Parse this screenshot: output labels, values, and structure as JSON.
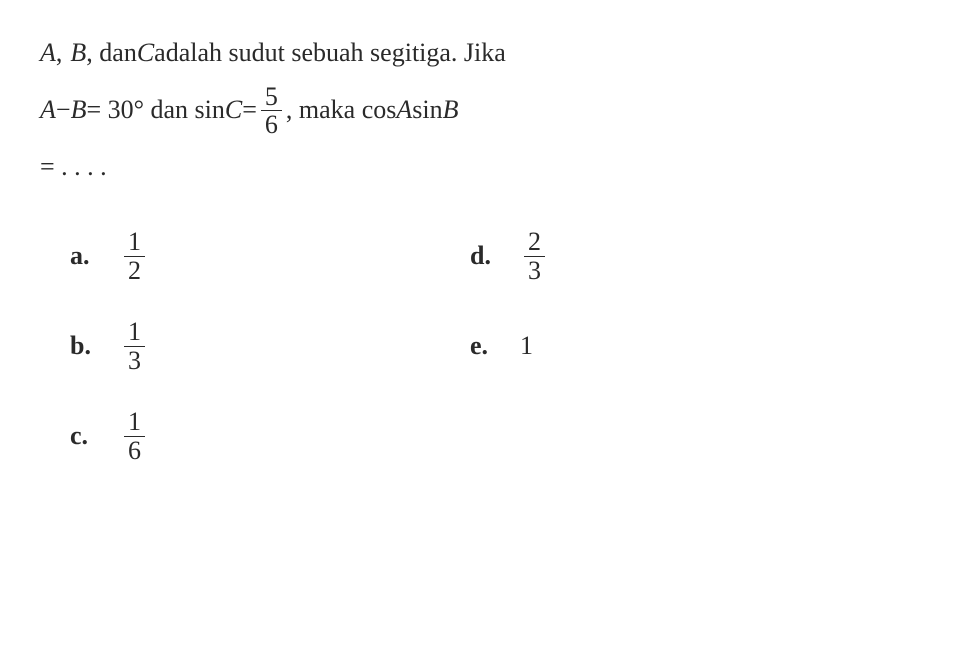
{
  "question": {
    "line1_parts": {
      "p1": "A",
      "p2": ", ",
      "p3": "B",
      "p4": ", dan ",
      "p5": "C",
      "p6": " adalah sudut sebuah segitiga. Jika"
    },
    "line2_parts": {
      "p1": "A",
      "p2": " − ",
      "p3": "B",
      "p4": " = 30° dan sin ",
      "p5": "C",
      "p6": " = ",
      "frac_num": "5",
      "frac_den": "6",
      "p7": ", maka cos ",
      "p8": "A",
      "p9": " sin ",
      "p10": "B"
    },
    "line3": "= . . . ."
  },
  "options": {
    "a": {
      "label": "a.",
      "num": "1",
      "den": "2"
    },
    "b": {
      "label": "b.",
      "num": "1",
      "den": "3"
    },
    "c": {
      "label": "c.",
      "num": "1",
      "den": "6"
    },
    "d": {
      "label": "d.",
      "num": "2",
      "den": "3"
    },
    "e": {
      "label": "e.",
      "value": "1"
    }
  },
  "style": {
    "font_size_pt": 26,
    "text_color": "#2a2a2a",
    "background_color": "#ffffff",
    "fraction_bar_color": "#2a2a2a"
  }
}
